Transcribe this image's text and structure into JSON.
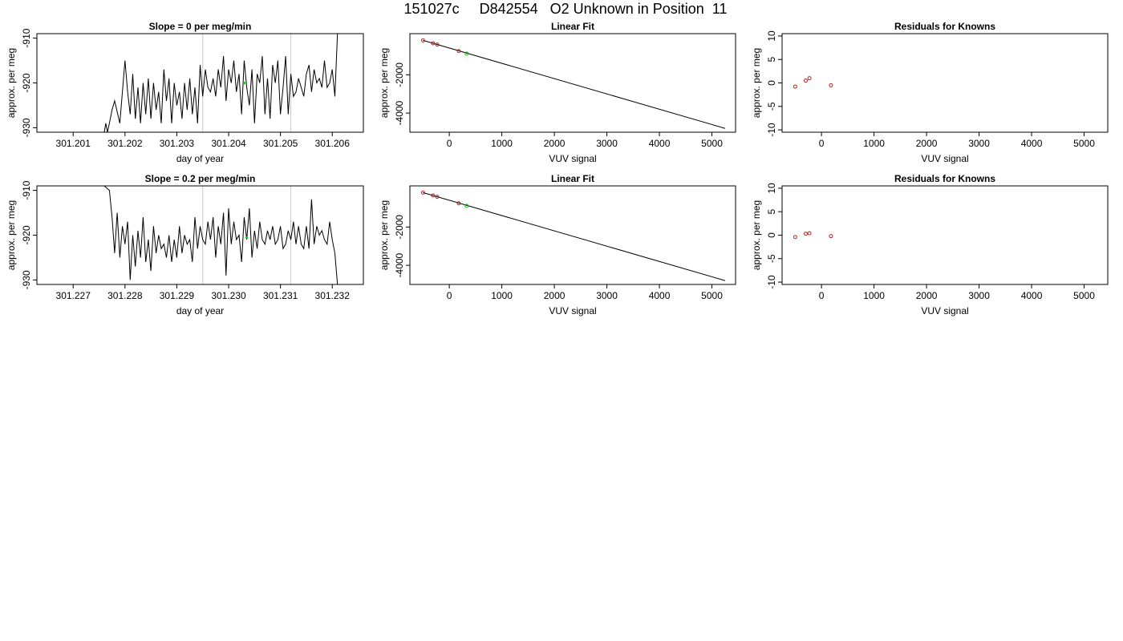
{
  "page_title": "151027c     D842554   O2 Unknown in Position  11",
  "colors": {
    "line": "#000000",
    "known_point": "#b22222",
    "unknown_point": "#00cc00",
    "vline": "#c8c8c8"
  },
  "chart_data": [
    {
      "id": "ts1",
      "type": "line",
      "title": "Slope =  0  per meg/min",
      "xlabel": "day of year",
      "ylabel": "approx. per meg",
      "xlim": [
        301.2003,
        301.2066
      ],
      "ylim": [
        -931,
        -909
      ],
      "xticks": [
        "301.201",
        "301.202",
        "301.203",
        "301.204",
        "301.205",
        "301.206"
      ],
      "yticks": [
        "-930",
        "-920",
        "-910"
      ],
      "vlines": [
        301.2035,
        301.2052
      ],
      "unknown_marker": {
        "x": 301.2043,
        "y": -920
      },
      "series": [
        {
          "x": [
            301.2015,
            301.20155,
            301.2016,
            301.20163,
            301.20166,
            301.2017,
            301.20175,
            301.2018,
            301.2019,
            301.202,
            301.20205,
            301.2021,
            301.20215,
            301.2022,
            301.20225,
            301.2023,
            301.20235,
            301.2024,
            301.20245,
            301.2025,
            301.20255,
            301.2026,
            301.20265,
            301.2027,
            301.20275,
            301.2028,
            301.20285,
            301.2029,
            301.20295,
            301.203,
            301.20305,
            301.2031,
            301.20315,
            301.2032,
            301.20325,
            301.2033,
            301.20335,
            301.2034,
            301.20345,
            301.2035,
            301.20355,
            301.2036,
            301.20365,
            301.2037,
            301.20375,
            301.2038,
            301.20385,
            301.2039,
            301.20395,
            301.204,
            301.20405,
            301.2041,
            301.20415,
            301.2042,
            301.20425,
            301.2043,
            301.20435,
            301.2044,
            301.20445,
            301.2045,
            301.20455,
            301.2046,
            301.20465,
            301.2047,
            301.20475,
            301.2048,
            301.20485,
            301.2049,
            301.20495,
            301.205,
            301.20505,
            301.2051,
            301.20515,
            301.2052,
            301.20525,
            301.2053,
            301.20535,
            301.2054,
            301.20545,
            301.2055,
            301.20555,
            301.2056,
            301.20565,
            301.2057,
            301.20575,
            301.2058,
            301.20585,
            301.2059,
            301.20595,
            301.206,
            301.20605,
            301.2061,
            301.20615
          ],
          "y": [
            -931,
            -931,
            -931,
            -929,
            -931,
            -929,
            -926,
            -924,
            -929,
            -915,
            -922,
            -927,
            -918,
            -928,
            -921,
            -929,
            -920,
            -927,
            -919,
            -928,
            -920,
            -926,
            -922,
            -929,
            -917,
            -924,
            -919,
            -929,
            -920,
            -925,
            -922,
            -928,
            -920,
            -926,
            -919,
            -927,
            -921,
            -929,
            -916,
            -923,
            -917,
            -921,
            -922,
            -919,
            -923,
            -917,
            -921,
            -914,
            -924,
            -917,
            -920,
            -915,
            -922,
            -918,
            -927,
            -915,
            -921,
            -925,
            -917,
            -929,
            -918,
            -920,
            -914,
            -927,
            -919,
            -928,
            -916,
            -920,
            -915,
            -927,
            -921,
            -914,
            -927,
            -918,
            -923,
            -922,
            -919,
            -921,
            -923,
            -918,
            -916,
            -922,
            -917,
            -920,
            -919,
            -921,
            -915,
            -921,
            -920,
            -917,
            -923,
            -909,
            -908
          ]
        }
      ]
    },
    {
      "id": "lf1",
      "type": "scatter",
      "title": "Linear Fit",
      "xlabel": "VUV signal",
      "ylabel": "approx. per meg",
      "xlim": [
        -750,
        5450
      ],
      "ylim": [
        -5000,
        150
      ],
      "xticks": [
        "0",
        "1000",
        "2000",
        "3000",
        "4000",
        "5000"
      ],
      "yticks": [
        "-4000",
        "-2000"
      ],
      "fit_line": {
        "x": [
          -500,
          5250
        ],
        "y": [
          -200,
          -4800
        ]
      },
      "known_points": {
        "x": [
          -500,
          -310,
          -230,
          180
        ],
        "y": [
          -200,
          -350,
          -420,
          -760
        ]
      },
      "unknown_point": {
        "x": 330,
        "y": -890
      }
    },
    {
      "id": "res1",
      "type": "scatter",
      "title": "Residuals for Knowns",
      "xlabel": "VUV signal",
      "ylabel": "approx. per meg",
      "xlim": [
        -750,
        5450
      ],
      "ylim": [
        -10.5,
        10.5
      ],
      "xticks": [
        "0",
        "1000",
        "2000",
        "3000",
        "4000",
        "5000"
      ],
      "yticks": [
        "-10",
        "-5",
        "0",
        "5",
        "10"
      ],
      "points": {
        "x": [
          -500,
          -300,
          -230,
          180
        ],
        "y": [
          -0.8,
          0.5,
          1.0,
          -0.5
        ]
      }
    },
    {
      "id": "ts2",
      "type": "line",
      "title": "Slope =  0.2  per meg/min",
      "xlabel": "day of year",
      "ylabel": "approx. per meg",
      "xlim": [
        301.2263,
        301.2326
      ],
      "ylim": [
        -931,
        -909
      ],
      "xticks": [
        "301.227",
        "301.228",
        "301.229",
        "301.230",
        "301.231",
        "301.232"
      ],
      "yticks": [
        "-930",
        "-920",
        "-910"
      ],
      "vlines": [
        301.2295,
        301.2312
      ],
      "unknown_marker": {
        "x": 301.23035,
        "y": -920.5
      },
      "series": [
        {
          "x": [
            301.2276,
            301.2277,
            301.22775,
            301.2278,
            301.22785,
            301.2279,
            301.22795,
            301.228,
            301.22805,
            301.2281,
            301.22815,
            301.2282,
            301.22825,
            301.2283,
            301.22835,
            301.2284,
            301.22845,
            301.2285,
            301.22855,
            301.2286,
            301.22865,
            301.2287,
            301.22875,
            301.2288,
            301.22885,
            301.2289,
            301.22895,
            301.229,
            301.22905,
            301.2291,
            301.22915,
            301.2292,
            301.22925,
            301.2293,
            301.22935,
            301.2294,
            301.22945,
            301.2295,
            301.22955,
            301.2296,
            301.22965,
            301.2297,
            301.22975,
            301.2298,
            301.22985,
            301.2299,
            301.22995,
            301.23,
            301.23005,
            301.2301,
            301.23015,
            301.2302,
            301.23025,
            301.2303,
            301.23035,
            301.2304,
            301.23045,
            301.2305,
            301.23055,
            301.2306,
            301.23065,
            301.2307,
            301.23075,
            301.2308,
            301.23085,
            301.2309,
            301.23095,
            301.231,
            301.23105,
            301.2311,
            301.23115,
            301.2312,
            301.23125,
            301.2313,
            301.23135,
            301.2314,
            301.23145,
            301.2315,
            301.23155,
            301.2316,
            301.23165,
            301.2317,
            301.23175,
            301.2318,
            301.23185,
            301.2319,
            301.23195,
            301.232,
            301.23205,
            301.2321
          ],
          "y": [
            -909,
            -910,
            -916,
            -924,
            -915,
            -925,
            -918,
            -922,
            -917,
            -930,
            -920,
            -927,
            -919,
            -925,
            -916,
            -926,
            -921,
            -928,
            -918,
            -924,
            -920,
            -923,
            -922,
            -925,
            -920,
            -926,
            -921,
            -925,
            -918,
            -924,
            -920,
            -922,
            -921,
            -926,
            -916,
            -923,
            -918,
            -921,
            -922,
            -917,
            -921,
            -916,
            -925,
            -918,
            -922,
            -915,
            -929,
            -914,
            -922,
            -917,
            -921,
            -920,
            -926,
            -916,
            -921,
            -914,
            -925,
            -919,
            -923,
            -917,
            -921,
            -922,
            -919,
            -921,
            -918,
            -922,
            -921,
            -918,
            -923,
            -922,
            -919,
            -921,
            -917,
            -922,
            -918,
            -922,
            -923,
            -918,
            -923,
            -912,
            -922,
            -918,
            -920,
            -919,
            -921,
            -922,
            -917,
            -921,
            -924,
            -931
          ]
        }
      ]
    },
    {
      "id": "lf2",
      "type": "scatter",
      "title": "Linear Fit",
      "xlabel": "VUV signal",
      "ylabel": "approx. per meg",
      "xlim": [
        -750,
        5450
      ],
      "ylim": [
        -5000,
        150
      ],
      "xticks": [
        "0",
        "1000",
        "2000",
        "3000",
        "4000",
        "5000"
      ],
      "yticks": [
        "-4000",
        "-2000"
      ],
      "fit_line": {
        "x": [
          -500,
          5250
        ],
        "y": [
          -200,
          -4800
        ]
      },
      "known_points": {
        "x": [
          -500,
          -310,
          -230,
          180
        ],
        "y": [
          -200,
          -350,
          -420,
          -760
        ]
      },
      "unknown_point": {
        "x": 330,
        "y": -890
      }
    },
    {
      "id": "res2",
      "type": "scatter",
      "title": "Residuals for Knowns",
      "xlabel": "VUV signal",
      "ylabel": "approx. per meg",
      "xlim": [
        -750,
        5450
      ],
      "ylim": [
        -10.5,
        10.5
      ],
      "xticks": [
        "0",
        "1000",
        "2000",
        "3000",
        "4000",
        "5000"
      ],
      "yticks": [
        "-10",
        "-5",
        "0",
        "5",
        "10"
      ],
      "points": {
        "x": [
          -500,
          -300,
          -230,
          180
        ],
        "y": [
          -0.4,
          0.3,
          0.4,
          -0.2
        ]
      }
    }
  ]
}
